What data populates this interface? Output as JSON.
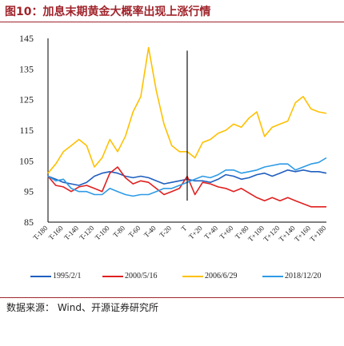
{
  "figure": {
    "title": "图10：加息末期黄金大概率出现上涨行情",
    "source": "数据来源：    Wind、开源证券研究所"
  },
  "chart_data": {
    "type": "line",
    "title": "",
    "xlabel": "",
    "ylabel": "",
    "ylim": [
      85,
      145
    ],
    "yticks": [
      85,
      95,
      105,
      115,
      125,
      135,
      145
    ],
    "x_ticks": [
      "T-180",
      "T-160",
      "T-140",
      "T-120",
      "T-100",
      "T-80",
      "T-60",
      "T-40",
      "T-20",
      "T",
      "T+20",
      "T+40",
      "T+60",
      "T+80",
      "T+100",
      "T+120",
      "T+140",
      "T+160",
      "T+180"
    ],
    "x": [
      -180,
      -170,
      -160,
      -150,
      -140,
      -130,
      -120,
      -110,
      -100,
      -90,
      -80,
      -70,
      -60,
      -50,
      -40,
      -30,
      -20,
      -10,
      0,
      10,
      20,
      30,
      40,
      50,
      60,
      70,
      80,
      90,
      100,
      110,
      120,
      130,
      140,
      150,
      160,
      170,
      180
    ],
    "marker_x": 0,
    "grid": false,
    "legend_position": "bottom",
    "series": [
      {
        "name": "1995/2/1",
        "color": "#1f5fbf",
        "values": [
          100,
          99,
          98,
          97.5,
          97,
          98,
          100,
          101,
          101.5,
          101,
          100,
          99.5,
          100,
          99.5,
          98.5,
          97.5,
          98,
          98.5,
          99,
          98.5,
          98.5,
          98,
          99,
          100.5,
          100,
          99,
          99.5,
          100.5,
          101,
          100,
          101,
          102,
          101.5,
          102,
          101.5,
          101.5,
          101
        ]
      },
      {
        "name": "2000/5/16",
        "color": "#e02020",
        "values": [
          100,
          97,
          96.5,
          95,
          96.5,
          97,
          96,
          95,
          101,
          103,
          99.5,
          97.5,
          98.5,
          98,
          96,
          94,
          95,
          96,
          100,
          94,
          98,
          97.5,
          96.5,
          96,
          95,
          96,
          94.5,
          93,
          92,
          93,
          92,
          93,
          92,
          91,
          90,
          90,
          90
        ]
      },
      {
        "name": "2006/6/29",
        "color": "#ffc000",
        "values": [
          101,
          104,
          108,
          110,
          112,
          110,
          103,
          106,
          112,
          108,
          113,
          121,
          126,
          142,
          128,
          117,
          110,
          108,
          108,
          106,
          111,
          112,
          114,
          115,
          117,
          116,
          119,
          121,
          113,
          116,
          117,
          118,
          124,
          126,
          122,
          121,
          120.5
        ]
      },
      {
        "name": "2018/12/20",
        "color": "#2e9be6",
        "values": [
          100,
          98.5,
          99,
          96,
          95,
          95,
          94,
          94,
          96,
          95,
          94,
          93.5,
          94,
          94,
          95,
          96,
          96,
          97,
          98,
          99,
          100,
          99.5,
          100.5,
          102,
          102,
          101,
          101.5,
          102,
          103,
          103.5,
          104,
          104,
          102,
          103,
          104,
          104.5,
          106
        ]
      }
    ]
  }
}
